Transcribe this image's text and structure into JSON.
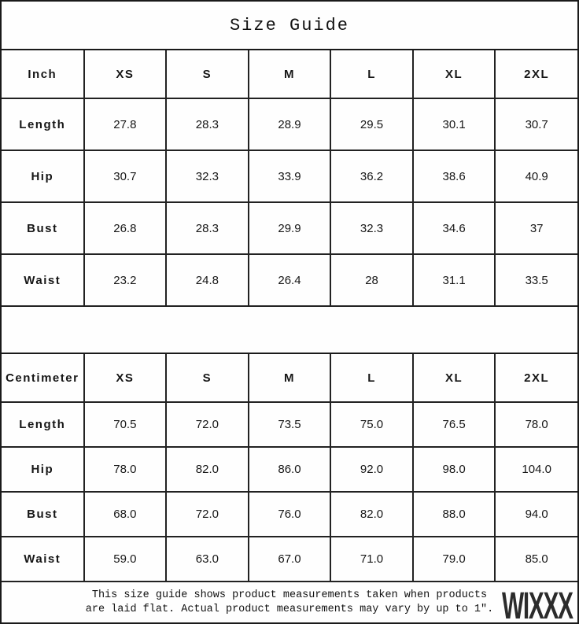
{
  "title": "Size Guide",
  "watermark": "WIXXX",
  "colors": {
    "border": "#1a1a1a",
    "text": "#151515",
    "background": "#fefefe",
    "watermark": "#2b2b2b"
  },
  "inch_table": {
    "columns": [
      "Inch",
      "XS",
      "S",
      "M",
      "L",
      "XL",
      "2XL"
    ],
    "rows": [
      {
        "label": "Length",
        "values": [
          "27.8",
          "28.3",
          "28.9",
          "29.5",
          "30.1",
          "30.7"
        ]
      },
      {
        "label": "Hip",
        "values": [
          "30.7",
          "32.3",
          "33.9",
          "36.2",
          "38.6",
          "40.9"
        ]
      },
      {
        "label": "Bust",
        "values": [
          "26.8",
          "28.3",
          "29.9",
          "32.3",
          "34.6",
          "37"
        ]
      },
      {
        "label": "Waist",
        "values": [
          "23.2",
          "24.8",
          "26.4",
          "28",
          "31.1",
          "33.5"
        ]
      }
    ]
  },
  "cm_table": {
    "columns": [
      "Centimeter",
      "XS",
      "S",
      "M",
      "L",
      "XL",
      "2XL"
    ],
    "rows": [
      {
        "label": "Length",
        "values": [
          "70.5",
          "72.0",
          "73.5",
          "75.0",
          "76.5",
          "78.0"
        ]
      },
      {
        "label": "Hip",
        "values": [
          "78.0",
          "82.0",
          "86.0",
          "92.0",
          "98.0",
          "104.0"
        ]
      },
      {
        "label": "Bust",
        "values": [
          "68.0",
          "72.0",
          "76.0",
          "82.0",
          "88.0",
          "94.0"
        ]
      },
      {
        "label": "Waist",
        "values": [
          "59.0",
          "63.0",
          "67.0",
          "71.0",
          "79.0",
          "85.0"
        ]
      }
    ]
  },
  "footer": {
    "line1": "This size guide shows product measurements taken when products",
    "line2": "are laid flat. Actual product measurements may vary by up to 1″."
  }
}
